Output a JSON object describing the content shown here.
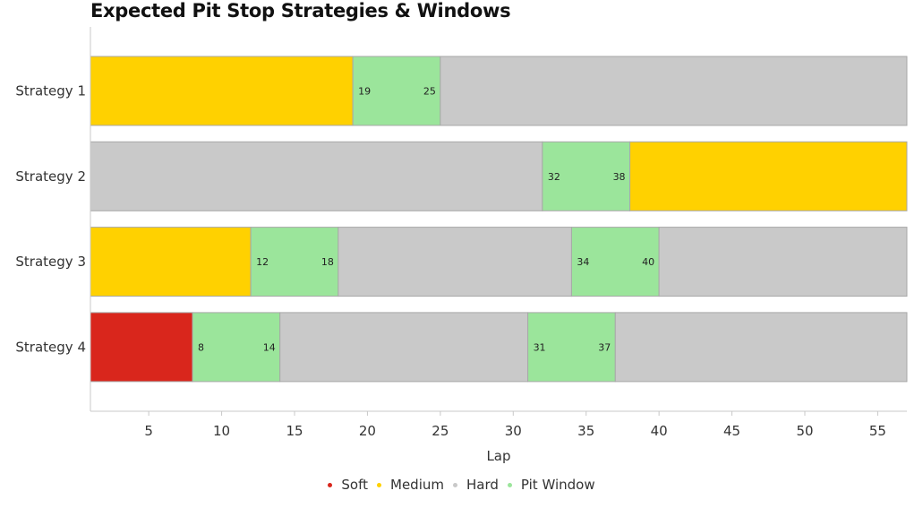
{
  "chart_data": {
    "type": "bar",
    "orientation": "horizontal-stacked",
    "title": "Expected Pit Stop Strategies & Windows",
    "xlabel": "Lap",
    "ylabel": "",
    "xlim": [
      1,
      57
    ],
    "xticks": [
      5,
      10,
      15,
      20,
      25,
      30,
      35,
      40,
      45,
      50,
      55
    ],
    "grid": false,
    "legend_position": "bottom-center",
    "colors": {
      "Soft": "#d9261c",
      "Medium": "#ffd100",
      "Hard": "#c9c9c9",
      "Pit Window": "#9be59b"
    },
    "legend": [
      "Soft",
      "Medium",
      "Hard",
      "Pit Window"
    ],
    "strategies": [
      {
        "label": "Strategy 1",
        "segments": [
          {
            "type": "Medium",
            "start": 1,
            "end": 19
          },
          {
            "type": "Pit Window",
            "start": 19,
            "end": 25,
            "start_label": "19",
            "end_label": "25"
          },
          {
            "type": "Hard",
            "start": 25,
            "end": 57
          }
        ]
      },
      {
        "label": "Strategy 2",
        "segments": [
          {
            "type": "Hard",
            "start": 1,
            "end": 32
          },
          {
            "type": "Pit Window",
            "start": 32,
            "end": 38,
            "start_label": "32",
            "end_label": "38"
          },
          {
            "type": "Medium",
            "start": 38,
            "end": 57
          }
        ]
      },
      {
        "label": "Strategy 3",
        "segments": [
          {
            "type": "Medium",
            "start": 1,
            "end": 12
          },
          {
            "type": "Pit Window",
            "start": 12,
            "end": 18,
            "start_label": "12",
            "end_label": "18"
          },
          {
            "type": "Hard",
            "start": 18,
            "end": 34
          },
          {
            "type": "Pit Window",
            "start": 34,
            "end": 40,
            "start_label": "34",
            "end_label": "40"
          },
          {
            "type": "Hard",
            "start": 40,
            "end": 57
          }
        ]
      },
      {
        "label": "Strategy 4",
        "segments": [
          {
            "type": "Soft",
            "start": 1,
            "end": 8
          },
          {
            "type": "Pit Window",
            "start": 8,
            "end": 14,
            "start_label": "8",
            "end_label": "14"
          },
          {
            "type": "Hard",
            "start": 14,
            "end": 31
          },
          {
            "type": "Pit Window",
            "start": 31,
            "end": 37,
            "start_label": "31",
            "end_label": "37"
          },
          {
            "type": "Hard",
            "start": 37,
            "end": 57
          }
        ]
      }
    ]
  }
}
